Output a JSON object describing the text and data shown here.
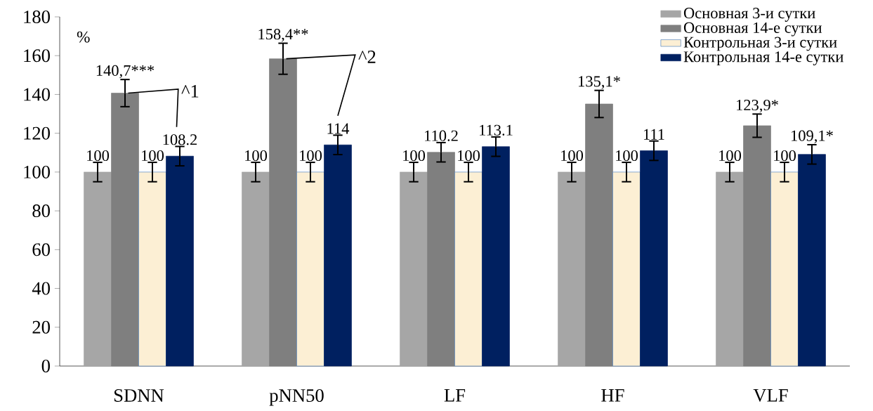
{
  "chart_data": {
    "type": "bar",
    "ylabel": "%",
    "categories": [
      "SDNN",
      "pNN50",
      "LF",
      "HF",
      "VLF"
    ],
    "series": [
      {
        "name": "Основная 3-и сутки",
        "color": "#a6a6a6",
        "values": [
          100,
          100,
          100,
          100,
          100
        ],
        "errors": [
          5,
          5,
          5,
          5,
          5
        ],
        "value_labels": [
          "100",
          "100",
          "100",
          "100",
          "100"
        ]
      },
      {
        "name": "Основная 14-е сутки",
        "color": "#7f7f7f",
        "values": [
          140.7,
          158.4,
          110.2,
          135.1,
          123.9
        ],
        "errors": [
          7,
          8,
          5,
          7,
          6
        ],
        "value_labels": [
          "140,7***",
          "158,4**",
          "110.2",
          "135,1*",
          "123,9*"
        ]
      },
      {
        "name": "Контрольная 3-и сутки",
        "color": "#fcefd4",
        "values": [
          100,
          100,
          100,
          100,
          100
        ],
        "errors": [
          5,
          5,
          5,
          5,
          5
        ],
        "value_labels": [
          "100",
          "100",
          "100",
          "100",
          "100"
        ]
      },
      {
        "name": "Контрольная 14-е сутки",
        "color": "#002060",
        "values": [
          108.2,
          114,
          113.1,
          111,
          109.1
        ],
        "errors": [
          5,
          5,
          5,
          5,
          5
        ],
        "value_labels": [
          "108.2",
          "114",
          "113.1",
          "111",
          "109,1*"
        ]
      }
    ],
    "annotations": [
      "^1",
      "^2"
    ],
    "ylim": [
      0,
      180
    ],
    "yticks": [
      0,
      20,
      40,
      60,
      80,
      100,
      120,
      140,
      160,
      180
    ],
    "legend": "top right",
    "grid": false
  }
}
